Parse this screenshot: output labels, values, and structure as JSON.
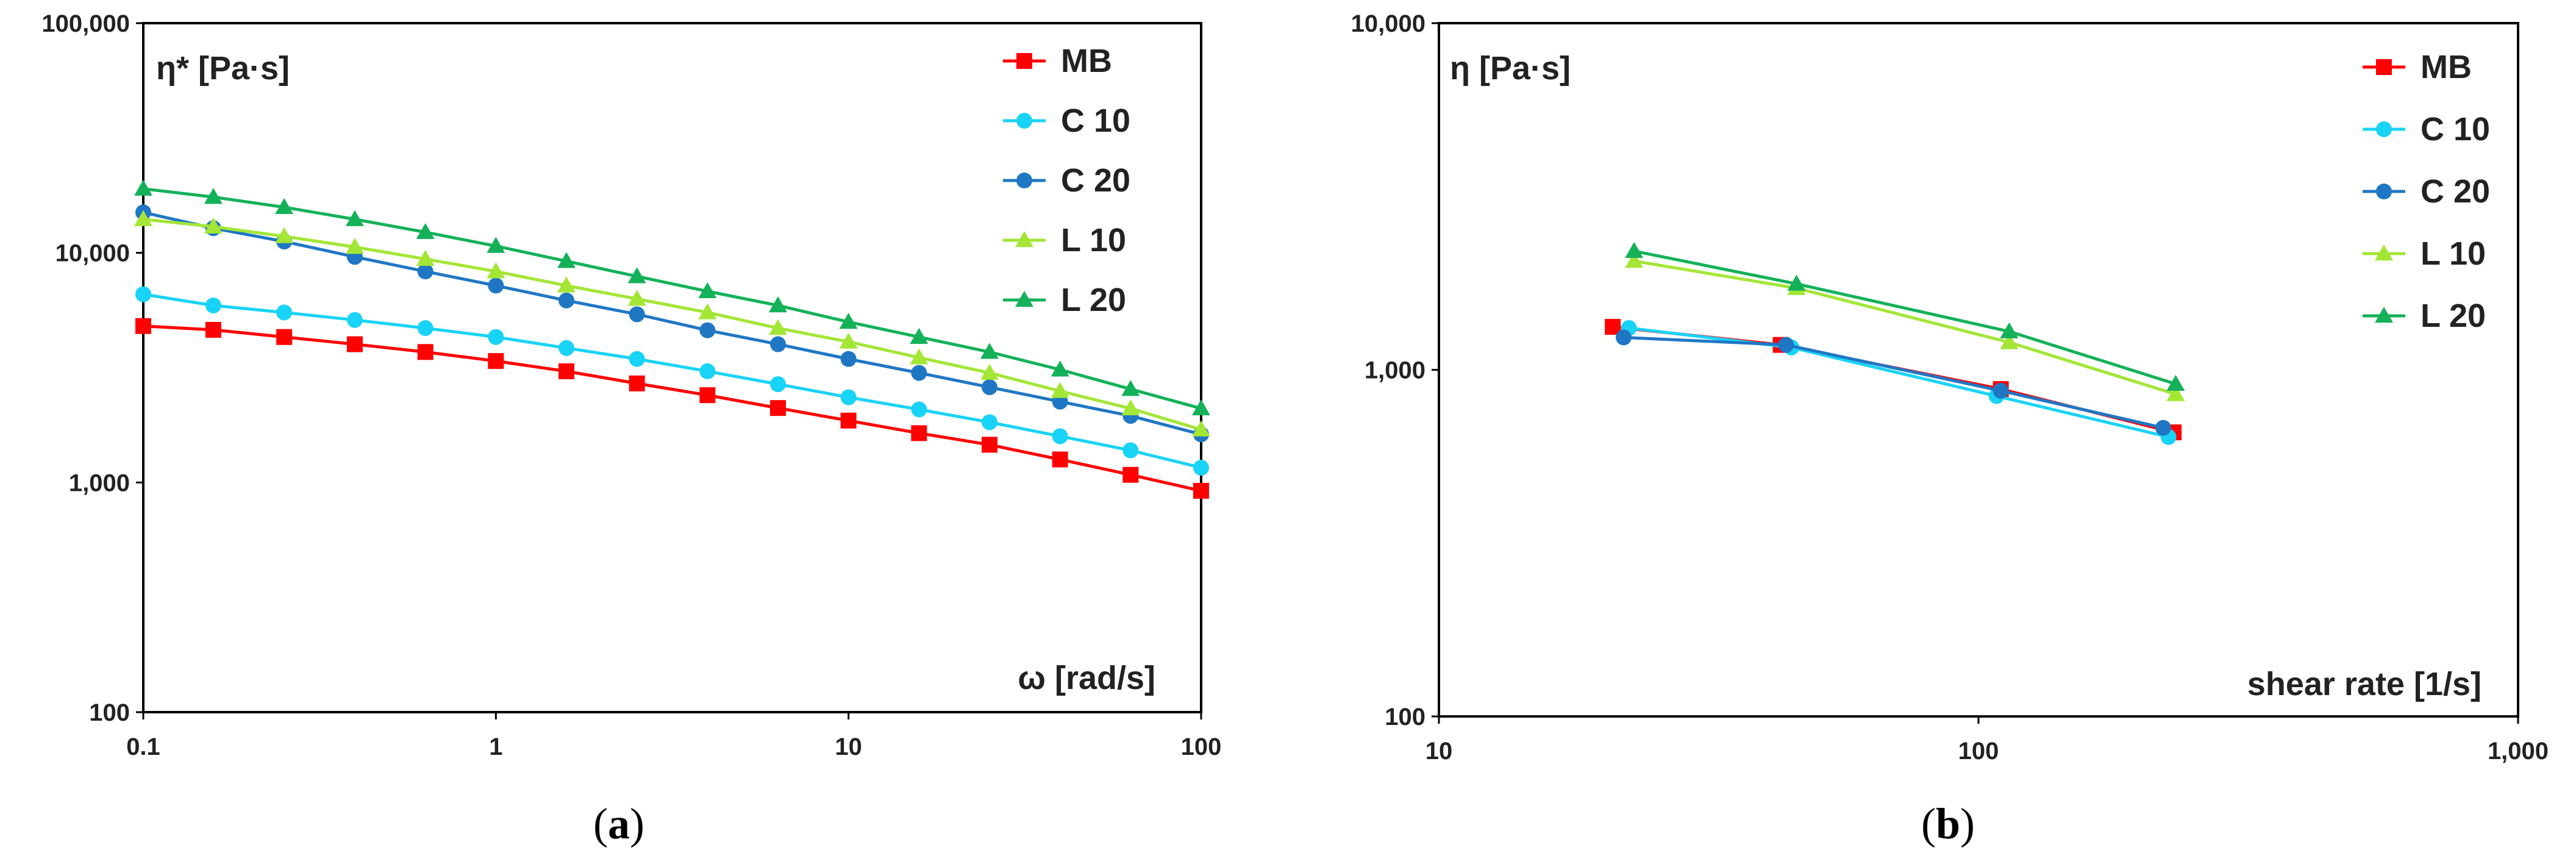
{
  "colors": {
    "MB": "#ff0000",
    "C 10": "#19d3f6",
    "C 20": "#1f77c4",
    "L 10": "#a3e635",
    "L 20": "#14b159"
  },
  "chart_data": [
    {
      "type": "line",
      "axes": "log-log",
      "ylabel": "η* [Pa·s]",
      "xlabel": "ω [rad/s]",
      "xlim": [
        0.1,
        100
      ],
      "ylim": [
        100,
        100000
      ],
      "x_ticks": [
        "0.1",
        "1",
        "10",
        "100"
      ],
      "y_ticks": [
        "100",
        "1,000",
        "10,000",
        "100,000"
      ],
      "caption": {
        "open": "(",
        "letter": "a",
        "close": ")"
      },
      "x": [
        0.1,
        0.158,
        0.251,
        0.398,
        0.631,
        1,
        1.585,
        2.512,
        3.981,
        6.31,
        10,
        15.85,
        25.12,
        39.81,
        63.1,
        100
      ],
      "series": [
        {
          "name": "MB",
          "marker": "square",
          "values": [
            4800,
            4620,
            4300,
            4000,
            3700,
            3380,
            3050,
            2700,
            2400,
            2110,
            1860,
            1640,
            1460,
            1260,
            1080,
            920
          ]
        },
        {
          "name": "C 10",
          "marker": "circle",
          "values": [
            6600,
            5900,
            5500,
            5100,
            4700,
            4300,
            3850,
            3450,
            3050,
            2680,
            2350,
            2080,
            1830,
            1590,
            1380,
            1160
          ]
        },
        {
          "name": "C 20",
          "marker": "circle",
          "values": [
            15000,
            12800,
            11200,
            9600,
            8300,
            7200,
            6200,
            5400,
            4600,
            4000,
            3450,
            3000,
            2600,
            2250,
            1950,
            1620
          ]
        },
        {
          "name": "L 10",
          "marker": "triangle",
          "values": [
            14000,
            13000,
            11800,
            10600,
            9400,
            8300,
            7200,
            6300,
            5500,
            4700,
            4100,
            3500,
            3000,
            2500,
            2100,
            1700
          ]
        },
        {
          "name": "L 20",
          "marker": "triangle",
          "values": [
            19000,
            17500,
            15800,
            14000,
            12300,
            10700,
            9200,
            7900,
            6800,
            5900,
            5000,
            4300,
            3700,
            3100,
            2550,
            2100
          ]
        }
      ]
    },
    {
      "type": "line",
      "axes": "log-log",
      "ylabel": "η [Pa·s]",
      "xlabel": "shear rate [1/s]",
      "xlim": [
        10,
        1000
      ],
      "ylim": [
        100,
        10000
      ],
      "x_ticks": [
        "10",
        "100",
        "1,000"
      ],
      "y_ticks": [
        "100",
        "1,000",
        "10,000"
      ],
      "caption": {
        "open": "(",
        "letter": "b",
        "close": ")"
      },
      "series": [
        {
          "name": "MB",
          "marker": "square",
          "x": [
            21,
            43,
            110,
            230
          ],
          "values": [
            1330,
            1180,
            880,
            660
          ]
        },
        {
          "name": "C 10",
          "marker": "circle",
          "x": [
            22.5,
            45,
            108,
            225
          ],
          "values": [
            1320,
            1160,
            840,
            640
          ]
        },
        {
          "name": "C 20",
          "marker": "circle",
          "x": [
            22,
            44,
            110,
            220
          ],
          "values": [
            1240,
            1180,
            870,
            680
          ]
        },
        {
          "name": "L 10",
          "marker": "triangle",
          "x": [
            23,
            46,
            114,
            232
          ],
          "values": [
            2060,
            1720,
            1200,
            850
          ]
        },
        {
          "name": "L 20",
          "marker": "triangle",
          "x": [
            23,
            46,
            114,
            232
          ],
          "values": [
            2200,
            1770,
            1290,
            910
          ]
        }
      ]
    }
  ]
}
